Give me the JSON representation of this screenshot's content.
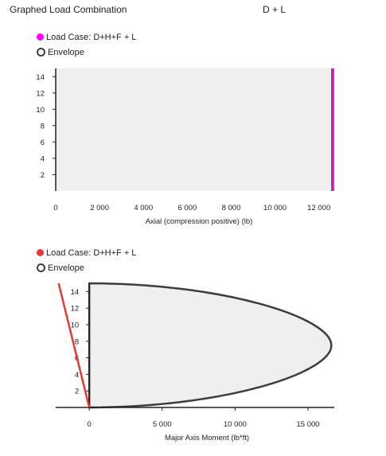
{
  "header": {
    "title": "Graphed Load Combination",
    "combination": "D + L"
  },
  "legend1": {
    "load_case": "Load Case: D+H+F + L",
    "envelope": "Envelope"
  },
  "legend2": {
    "load_case": "Load Case: D+H+F + L",
    "envelope": "Envelope"
  },
  "colors": {
    "plot_bg": "#efefef",
    "axis": "#222222",
    "envelope": "#3d3d3d",
    "chart1_series": "#ff00ff",
    "chart2_series": "#e53935"
  },
  "chart_data": [
    {
      "type": "line",
      "xlabel": "Axial (compression positive) (lb)",
      "ylabel": "",
      "xlim": [
        0,
        12700
      ],
      "ylim": [
        0,
        15
      ],
      "x_ticks": [
        "0",
        "2 000",
        "4 000",
        "6 000",
        "8 000",
        "10 000",
        "12 000"
      ],
      "x_tick_values": [
        0,
        2000,
        4000,
        6000,
        8000,
        10000,
        12000
      ],
      "y_ticks": [
        "2",
        "4",
        "6",
        "8",
        "10",
        "12",
        "14"
      ],
      "y_tick_values": [
        2,
        4,
        6,
        8,
        10,
        12,
        14
      ],
      "series": [
        {
          "name": "Load Case: D+H+F + L",
          "x": [
            12650,
            12650
          ],
          "y": [
            0,
            15
          ]
        },
        {
          "name": "Envelope",
          "x": [
            12600,
            12600
          ],
          "y": [
            0,
            15
          ]
        }
      ]
    },
    {
      "type": "line",
      "xlabel": "Major Axis Moment (lb*ft)",
      "ylabel": "",
      "xlim": [
        -2300,
        16800
      ],
      "ylim": [
        0,
        15
      ],
      "x_ticks": [
        "0",
        "5 000",
        "10 000",
        "15 000"
      ],
      "x_tick_values": [
        0,
        5000,
        10000,
        15000
      ],
      "y_ticks": [
        "2",
        "4",
        "6",
        "8",
        "10",
        "12",
        "14"
      ],
      "y_tick_values": [
        2,
        4,
        6,
        8,
        10,
        12,
        14
      ],
      "series": [
        {
          "name": "Load Case: D+H+F + L",
          "x": [
            0,
            -2100
          ],
          "y": [
            0,
            15
          ]
        },
        {
          "name": "Envelope",
          "x": [
            0,
            16600,
            0
          ],
          "y": [
            0,
            7.5,
            15
          ]
        }
      ]
    }
  ]
}
